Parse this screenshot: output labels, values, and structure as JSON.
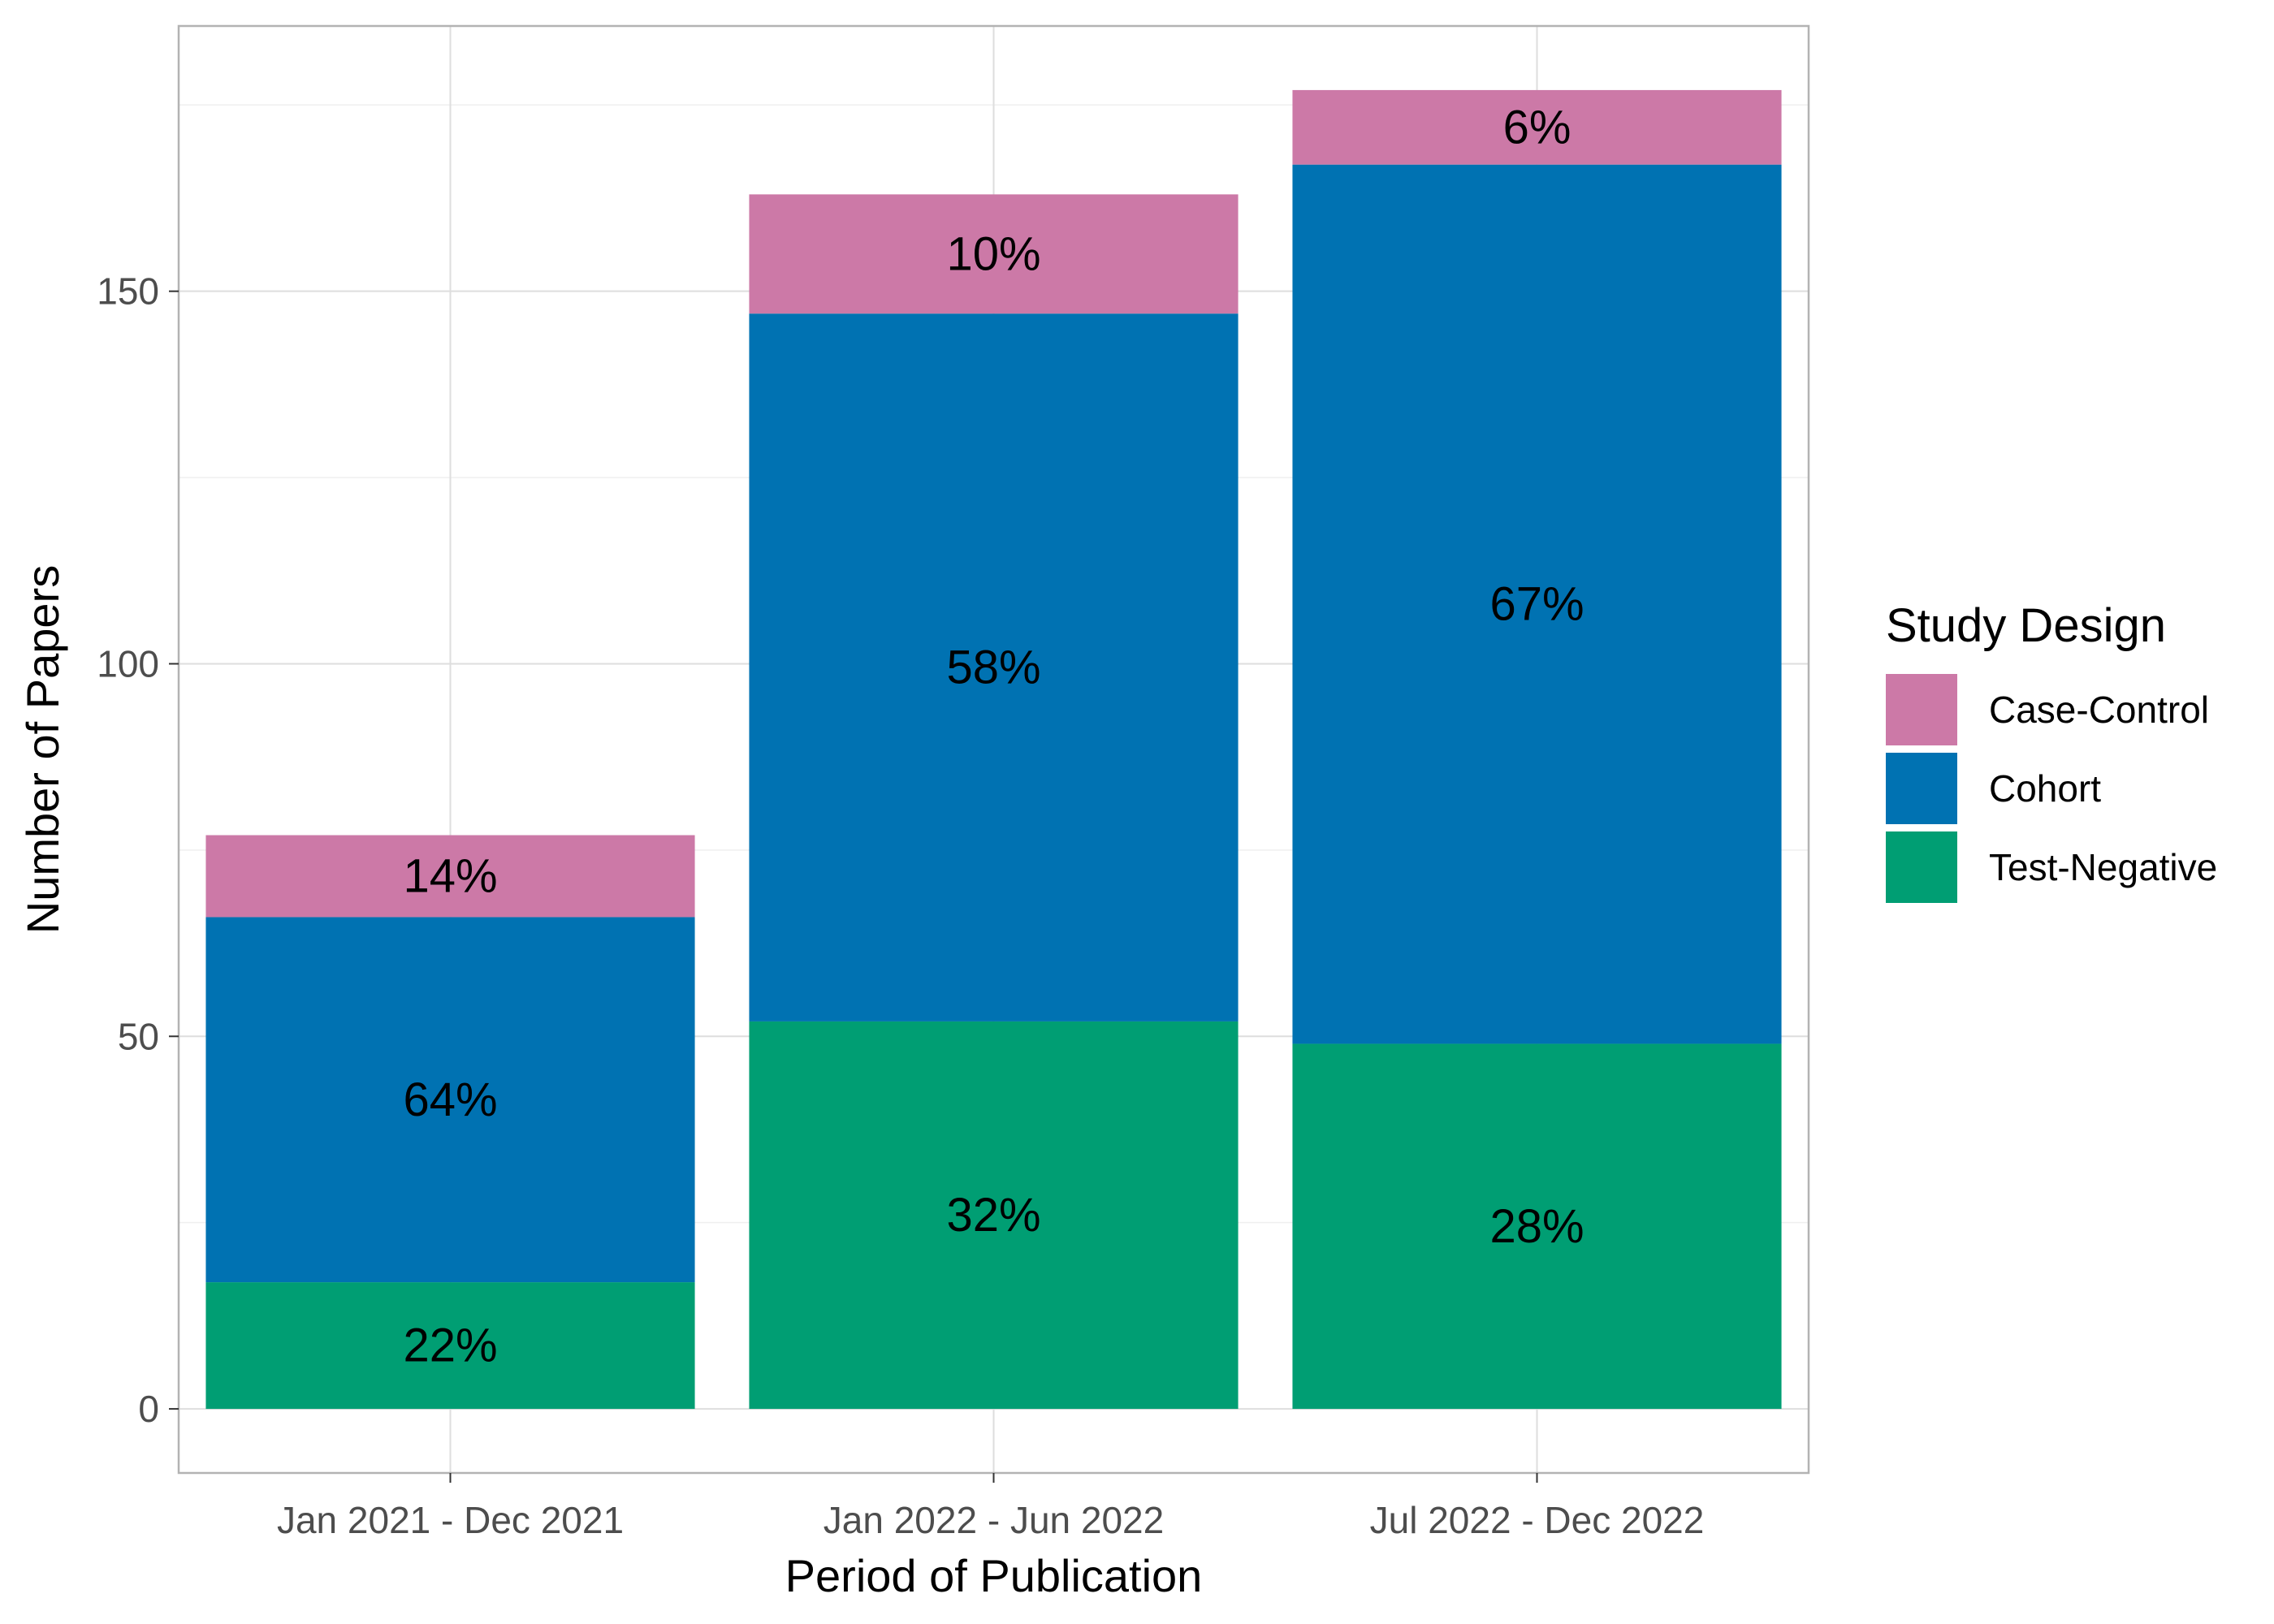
{
  "chart_data": {
    "type": "bar",
    "stacked": true,
    "title": "",
    "xlabel": "Period of Publication",
    "ylabel": "Number of Papers",
    "categories": [
      "Jan 2021 - Dec 2021",
      "Jan 2022 - Jun 2022",
      "Jul 2022 - Dec 2022"
    ],
    "series": [
      {
        "name": "Test-Negative",
        "color": "#009E73",
        "values": [
          17,
          52,
          49
        ],
        "labels": [
          "22%",
          "32%",
          "28%"
        ]
      },
      {
        "name": "Cohort",
        "color": "#0072B2",
        "values": [
          49,
          95,
          118
        ],
        "labels": [
          "64%",
          "58%",
          "67%"
        ]
      },
      {
        "name": "Case-Control",
        "color": "#CC79A7",
        "values": [
          11,
          16,
          10
        ],
        "labels": [
          "14%",
          "10%",
          "6%"
        ]
      }
    ],
    "ylim": [
      -8.6,
      185.6
    ],
    "yticks": [
      0,
      50,
      100,
      150
    ],
    "grid": true,
    "legend": {
      "title": "Study Design",
      "position": "right",
      "order": [
        "Case-Control",
        "Cohort",
        "Test-Negative"
      ]
    }
  },
  "colors": {
    "panel_border": "#b3b3b3",
    "grid_major": "#dedede",
    "grid_minor": "#efefef",
    "tick_text": "#4d4d4d"
  }
}
